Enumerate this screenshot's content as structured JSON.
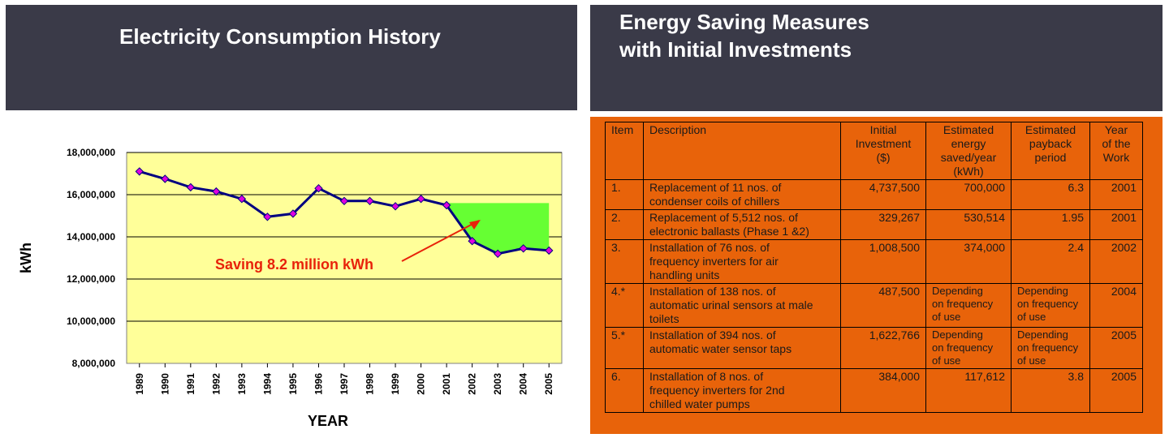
{
  "left_banner": {
    "title": "Electricity Consumption History"
  },
  "right_banner": {
    "title_line1": "Energy Saving Measures",
    "title_line2": "with Initial Investments"
  },
  "chart_data": {
    "type": "line",
    "title": "",
    "xlabel": "YEAR",
    "ylabel": "kWh",
    "ylim": [
      8000000,
      18000000
    ],
    "yticks": [
      8000000,
      10000000,
      12000000,
      14000000,
      16000000,
      18000000
    ],
    "ytick_labels": [
      "8,000,000",
      "10,000,000",
      "12,000,000",
      "14,000,000",
      "16,000,000",
      "18,000,000"
    ],
    "categories": [
      "1989",
      "1990",
      "1991",
      "1992",
      "1993",
      "1994",
      "1995",
      "1996",
      "1997",
      "1998",
      "1999",
      "2000",
      "2001",
      "2002",
      "2003",
      "2004",
      "2005"
    ],
    "series": [
      {
        "values": [
          17100000,
          16750000,
          16350000,
          16150000,
          15800000,
          14950000,
          15100000,
          16300000,
          15700000,
          15700000,
          15450000,
          15800000,
          15500000,
          13800000,
          13200000,
          13450000,
          13350000
        ]
      }
    ],
    "saving_baseline": 15600000,
    "saving_from": "2001",
    "saving_to": "2005",
    "annotation": "Saving 8.2 million kWh",
    "grid": true,
    "colors": {
      "plot_bg": "#ffff99",
      "line": "#000080",
      "marker": "#e000e0",
      "saving": "#66ff33",
      "annotation": "#e8220a",
      "axis_text": "#000000"
    }
  },
  "table": {
    "headers": {
      "item": "Item",
      "description": "Description",
      "investment": [
        "Initial",
        "Investment",
        "($)"
      ],
      "energy": [
        "Estimated",
        "energy",
        "saved/year",
        "(kWh)"
      ],
      "payback": [
        "Estimated",
        "payback",
        "period"
      ],
      "year": [
        "Year",
        "of the",
        "Work"
      ]
    },
    "rows": [
      {
        "item": "1.",
        "desc": [
          "Replacement of 11 nos. of",
          "condenser coils of chillers"
        ],
        "investment": "4,737,500",
        "energy": [
          "700,000"
        ],
        "payback": [
          "6.3"
        ],
        "year": "2001"
      },
      {
        "item": "2.",
        "desc": [
          "Replacement of 5,512 nos. of",
          "electronic ballasts (Phase 1 &2)"
        ],
        "investment": "329,267",
        "energy": [
          "530,514"
        ],
        "payback": [
          "1.95"
        ],
        "year": "2001"
      },
      {
        "item": "3.",
        "desc": [
          "Installation of 76 nos. of",
          "frequency inverters for air",
          "handling units"
        ],
        "investment": "1,008,500",
        "energy": [
          "374,000"
        ],
        "payback": [
          "2.4"
        ],
        "year": "2002"
      },
      {
        "item": "4.*",
        "desc": [
          "Installation of 138 nos. of",
          "automatic urinal sensors at male",
          "toilets"
        ],
        "investment": "487,500",
        "energy": [
          "Depending",
          "on frequency",
          "of use"
        ],
        "payback": [
          "Depending",
          "on frequency",
          "of use"
        ],
        "year": "2004"
      },
      {
        "item": "5.*",
        "desc": [
          "Installation of 394 nos. of",
          "automatic water sensor taps"
        ],
        "investment": "1,622,766",
        "energy": [
          "Depending",
          "on frequency",
          "of use"
        ],
        "payback": [
          "Depending",
          "on frequency",
          "of use"
        ],
        "year": "2005"
      },
      {
        "item": "6.",
        "desc": [
          "Installation of 8 nos. of",
          "frequency inverters for 2nd",
          "chilled water pumps"
        ],
        "investment": "384,000",
        "energy": [
          "117,612"
        ],
        "payback": [
          "3.8"
        ],
        "year": "2005"
      }
    ]
  }
}
